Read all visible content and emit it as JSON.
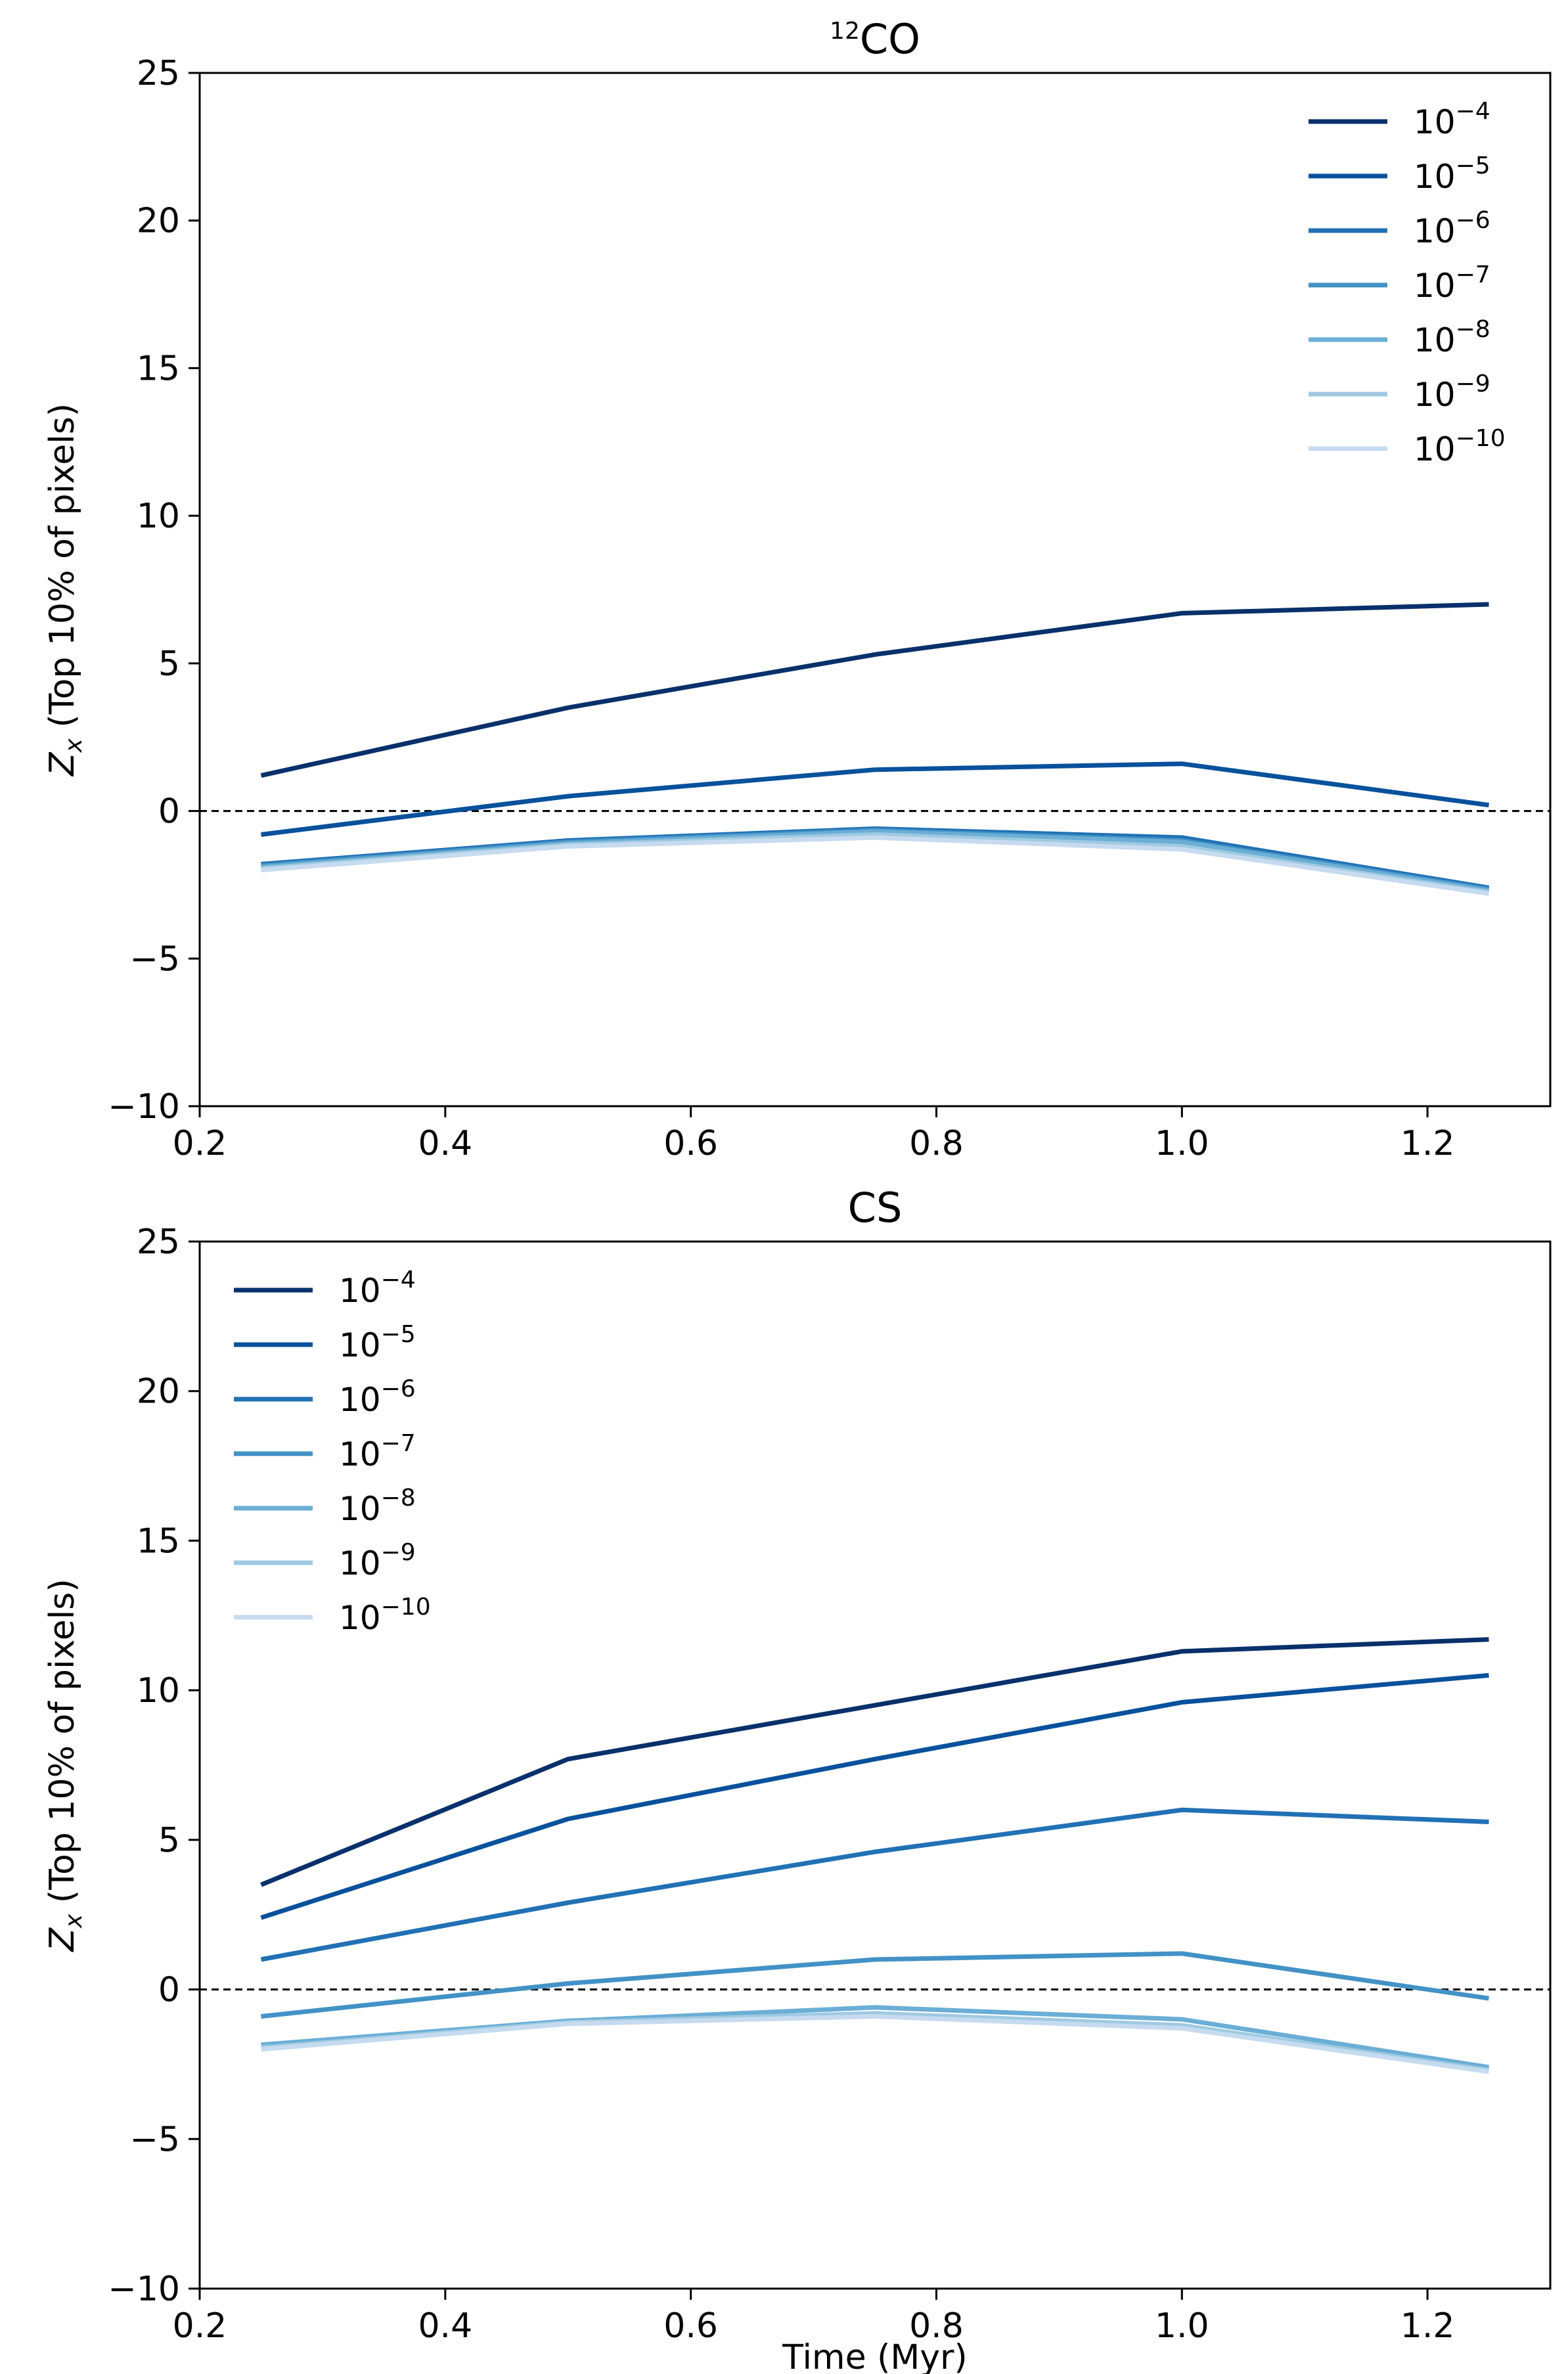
{
  "chart_data": [
    {
      "type": "line",
      "title_sup": "12",
      "title_main": "CO",
      "xlabel": "",
      "ylabel": "Z",
      "ylabel_sub": "x",
      "ylabel_rest": " (Top 10% of pixels)",
      "xlim": [
        0.2,
        1.3
      ],
      "ylim": [
        -10,
        25
      ],
      "xticks": [
        "0.2",
        "0.4",
        "0.6",
        "0.8",
        "1.0",
        "1.2"
      ],
      "yticks": [
        "−10",
        "−5",
        "0",
        "5",
        "10",
        "15",
        "20",
        "25"
      ],
      "legend_position": "top-right",
      "reference_line": 0,
      "x": [
        0.25,
        0.5,
        0.75,
        1.0,
        1.25
      ],
      "series": [
        {
          "name": "10",
          "exp": "−4",
          "color": "#08306b",
          "values": [
            1.2,
            3.5,
            5.3,
            6.7,
            7.0
          ]
        },
        {
          "name": "10",
          "exp": "−5",
          "color": "#08519c",
          "values": [
            -0.8,
            0.5,
            1.4,
            1.6,
            0.2
          ]
        },
        {
          "name": "10",
          "exp": "−6",
          "color": "#2171b5",
          "values": [
            -1.8,
            -1.0,
            -0.6,
            -0.9,
            -2.6
          ]
        },
        {
          "name": "10",
          "exp": "−7",
          "color": "#4292c6",
          "values": [
            -1.85,
            -1.05,
            -0.65,
            -1.0,
            -2.65
          ]
        },
        {
          "name": "10",
          "exp": "−8",
          "color": "#6baed6",
          "values": [
            -1.9,
            -1.1,
            -0.7,
            -1.05,
            -2.7
          ]
        },
        {
          "name": "10",
          "exp": "−9",
          "color": "#9ecae1",
          "values": [
            -1.95,
            -1.15,
            -0.8,
            -1.2,
            -2.75
          ]
        },
        {
          "name": "10",
          "exp": "−10",
          "color": "#c6dbef",
          "values": [
            -2.0,
            -1.2,
            -0.9,
            -1.3,
            -2.8
          ]
        }
      ]
    },
    {
      "type": "line",
      "title_sup": "",
      "title_main": "CS",
      "xlabel": "Time (Myr)",
      "ylabel": "Z",
      "ylabel_sub": "x",
      "ylabel_rest": " (Top 10% of pixels)",
      "xlim": [
        0.2,
        1.3
      ],
      "ylim": [
        -10,
        25
      ],
      "xticks": [
        "0.2",
        "0.4",
        "0.6",
        "0.8",
        "1.0",
        "1.2"
      ],
      "yticks": [
        "−10",
        "−5",
        "0",
        "5",
        "10",
        "15",
        "20",
        "25"
      ],
      "legend_position": "top-left",
      "reference_line": 0,
      "x": [
        0.25,
        0.5,
        0.75,
        1.0,
        1.25
      ],
      "series": [
        {
          "name": "10",
          "exp": "−4",
          "color": "#08306b",
          "values": [
            3.5,
            7.7,
            9.5,
            11.3,
            11.7
          ]
        },
        {
          "name": "10",
          "exp": "−5",
          "color": "#08519c",
          "values": [
            2.4,
            5.7,
            7.7,
            9.6,
            10.5
          ]
        },
        {
          "name": "10",
          "exp": "−6",
          "color": "#2171b5",
          "values": [
            1.0,
            2.9,
            4.6,
            6.0,
            5.6
          ]
        },
        {
          "name": "10",
          "exp": "−7",
          "color": "#4292c6",
          "values": [
            -0.9,
            0.2,
            1.0,
            1.2,
            -0.3
          ]
        },
        {
          "name": "10",
          "exp": "−8",
          "color": "#6baed6",
          "values": [
            -1.85,
            -1.05,
            -0.6,
            -1.0,
            -2.6
          ]
        },
        {
          "name": "10",
          "exp": "−9",
          "color": "#9ecae1",
          "values": [
            -1.95,
            -1.1,
            -0.8,
            -1.2,
            -2.7
          ]
        },
        {
          "name": "10",
          "exp": "−10",
          "color": "#c6dbef",
          "values": [
            -2.0,
            -1.15,
            -0.9,
            -1.3,
            -2.75
          ]
        }
      ]
    }
  ]
}
